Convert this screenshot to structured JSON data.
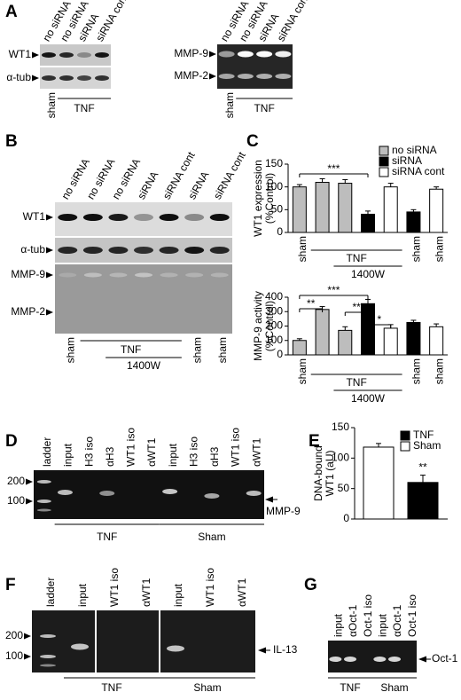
{
  "panel_A": {
    "letter": "A",
    "wt1_blot": {
      "lanes": [
        "no siRNA",
        "no siRNA",
        "siRNA",
        "siRNA cont"
      ],
      "rows": [
        "WT1",
        "α-tub"
      ],
      "below": [
        "sham",
        "TNF"
      ]
    },
    "mmp_blot": {
      "lanes": [
        "no siRNA",
        "no siRNA",
        "siRNA",
        "siRNA cont"
      ],
      "rows": [
        "MMP-9",
        "MMP-2"
      ],
      "below": [
        "sham",
        "TNF"
      ]
    }
  },
  "panel_B": {
    "letter": "B",
    "lanes": [
      "no siRNA",
      "no siRNA",
      "no siRNA",
      "siRNA",
      "siRNA cont",
      "siRNA",
      "siRNA cont"
    ],
    "rows": [
      "WT1",
      "α-tub",
      "MMP-9",
      "MMP-2"
    ],
    "below": [
      "sham",
      "TNF",
      "1400W",
      "sham",
      "sham"
    ]
  },
  "panel_C": {
    "letter": "C"
  },
  "panel_D": {
    "letter": "D",
    "lanes": [
      "ladder",
      "input",
      "H3 iso",
      "αH3",
      "WT1 iso",
      "αWT1",
      "input",
      "H3 iso",
      "αH3",
      "WT1 iso",
      "αWT1"
    ],
    "markers": [
      "200",
      "100"
    ],
    "band": "MMP-9",
    "groups": [
      "TNF",
      "Sham"
    ]
  },
  "panel_E": {
    "letter": "E"
  },
  "panel_F": {
    "letter": "F",
    "lanes": [
      "ladder",
      "input",
      "WT1 iso",
      "αWT1",
      "input",
      "WT1 iso",
      "αWT1"
    ],
    "markers": [
      "200",
      "100"
    ],
    "band": "IL-13",
    "groups": [
      "TNF",
      "Sham"
    ]
  },
  "panel_G": {
    "letter": "G",
    "lanes": [
      "input",
      "αOct-1",
      "Oct-1 iso",
      "input",
      "αOct-1",
      "Oct-1 iso"
    ],
    "band": "Oct-1",
    "groups": [
      "TNF",
      "Sham"
    ]
  },
  "chart_data": [
    {
      "type": "bar",
      "ylabel": [
        "WT1 expression",
        "(%Control)"
      ],
      "categories": [
        "sham",
        null,
        null,
        null,
        null,
        "sham",
        "sham"
      ],
      "group_labels": [
        "TNF",
        "1400W"
      ],
      "values": [
        100,
        110,
        108,
        40,
        100,
        45,
        95
      ],
      "errors": [
        5,
        8,
        8,
        7,
        8,
        5,
        5
      ],
      "colors": [
        "#bdbdbd",
        "#bdbdbd",
        "#bdbdbd",
        "#000000",
        "#ffffff",
        "#000000",
        "#ffffff"
      ],
      "legend": [
        {
          "name": "no siRNA",
          "color": "#bdbdbd"
        },
        {
          "name": "siRNA",
          "color": "#000000"
        },
        {
          "name": "siRNA cont",
          "color": "#ffffff"
        }
      ],
      "ylim": [
        0,
        150
      ],
      "yticks": [
        0,
        50,
        100,
        150
      ],
      "annotations": [
        "***"
      ]
    },
    {
      "type": "bar",
      "ylabel": [
        "MMP-9 activity",
        "(%Control)"
      ],
      "categories": [
        "sham",
        null,
        null,
        null,
        null,
        "sham",
        "sham"
      ],
      "group_labels": [
        "TNF",
        "1400W"
      ],
      "values": [
        100,
        315,
        170,
        355,
        185,
        225,
        195
      ],
      "errors": [
        12,
        20,
        25,
        30,
        25,
        15,
        20
      ],
      "colors": [
        "#bdbdbd",
        "#bdbdbd",
        "#bdbdbd",
        "#000000",
        "#ffffff",
        "#000000",
        "#ffffff"
      ],
      "ylim": [
        0,
        400
      ],
      "yticks": [
        0,
        100,
        200,
        300,
        400
      ],
      "annotations": [
        "**",
        "***",
        "**",
        "*"
      ]
    },
    {
      "type": "bar",
      "ylabel": [
        "DNA-bound",
        "WT1 (aU)"
      ],
      "series": [
        {
          "name": "TNF",
          "color": "#000000",
          "values": [
            60
          ],
          "errors": [
            12
          ]
        },
        {
          "name": "Sham",
          "color": "#ffffff",
          "values": [
            118
          ],
          "errors": [
            6
          ]
        }
      ],
      "ylim": [
        0,
        150
      ],
      "yticks": [
        0,
        50,
        100,
        150
      ],
      "annotations": [
        "**"
      ]
    }
  ]
}
